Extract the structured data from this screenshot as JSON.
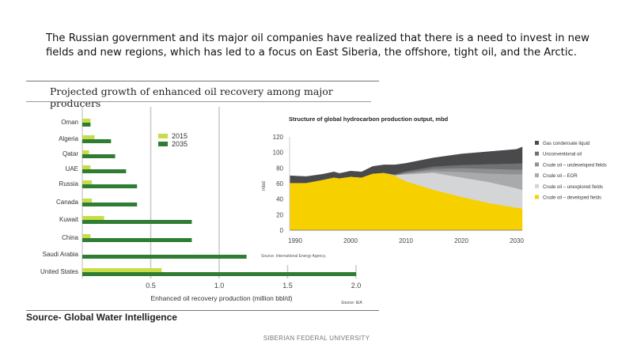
{
  "slide": {
    "intro_text": "The Russian government and its major oil companies have realized that there is a need to invest in new fields and new regions, which has led to a focus on East Siberia, the offshore, tight oil, and the Arctic.",
    "source_credit": "Source- Global Water Intelligence",
    "footer": "SIBERIAN FEDERAL UNIVERSITY"
  },
  "chart_data": [
    {
      "type": "bar",
      "orientation": "horizontal",
      "title": "Projected growth of enhanced oil recovery among major producers",
      "xlabel": "Enhanced oil recovery production (million bbl/d)",
      "source": "Source: IEA",
      "categories": [
        "Oman",
        "Algeria",
        "Qatar",
        "UAE",
        "Russia",
        "Canada",
        "Kuwait",
        "China",
        "Saudi Arabia",
        "United States"
      ],
      "series": [
        {
          "name": "2015",
          "color": "#c8dc4a",
          "values": [
            0.06,
            0.09,
            0.05,
            0.06,
            0.07,
            0.07,
            0.16,
            0.06,
            0.0,
            0.58
          ]
        },
        {
          "name": "2035",
          "color": "#2e7d32",
          "values": [
            0.06,
            0.21,
            0.24,
            0.32,
            0.4,
            0.4,
            0.8,
            0.8,
            1.2,
            2.0
          ]
        }
      ],
      "xlim": [
        0,
        2.0
      ],
      "xticks": [
        "0.5",
        "1.0",
        "1.5",
        "2.0"
      ],
      "grid": true,
      "legend": "top-center"
    },
    {
      "type": "area",
      "stacked": true,
      "title": "Structure of global hydrocarbon production output, mbd",
      "ylabel": "mbd",
      "source": "Source: International Energy Agency.",
      "x": [
        1989,
        1992,
        1995,
        1997,
        1998,
        2000,
        2002,
        2004,
        2006,
        2008,
        2010,
        2015,
        2020,
        2025,
        2030,
        2031
      ],
      "xticks": [
        "1990",
        "2000",
        "2010",
        "2020",
        "2030"
      ],
      "yticks": [
        "0",
        "20",
        "40",
        "60",
        "80",
        "100",
        "120"
      ],
      "ylim": [
        0,
        120
      ],
      "legend": "right",
      "series": [
        {
          "name": "Crude oil – developed fields",
          "color": "#f7d000",
          "values": [
            61,
            61,
            65,
            68,
            67,
            69,
            68,
            73,
            74,
            70,
            63,
            52,
            43,
            35,
            29,
            28
          ]
        },
        {
          "name": "Crude oil – unexplored fields",
          "color": "#d4d5d7",
          "values": [
            0,
            0,
            0,
            0,
            0,
            0,
            0,
            0,
            0,
            1,
            9,
            22,
            25,
            27,
            25,
            24
          ]
        },
        {
          "name": "Crude oil – EOR",
          "color": "#a9aaac",
          "values": [
            0,
            0,
            0,
            0,
            0,
            0,
            0,
            0,
            0,
            0,
            1,
            2,
            7,
            11,
            18,
            20
          ]
        },
        {
          "name": "Crude oil – undeveloped fields",
          "color": "#8f9092",
          "values": [
            0,
            0,
            0,
            0,
            0,
            0,
            0,
            0,
            0,
            0,
            1,
            3,
            5,
            6,
            6,
            6
          ]
        },
        {
          "name": "Unconventional oil",
          "color": "#707173",
          "values": [
            0,
            0,
            0,
            0,
            0,
            0,
            0,
            0,
            0,
            1,
            2,
            3,
            4,
            6,
            8,
            8
          ]
        },
        {
          "name": "Gas condensate liquid",
          "color": "#4a4a4c",
          "values": [
            9,
            8,
            7,
            7,
            6,
            7,
            7,
            9,
            10,
            12,
            10,
            11,
            14,
            16,
            18,
            21
          ]
        }
      ]
    }
  ]
}
